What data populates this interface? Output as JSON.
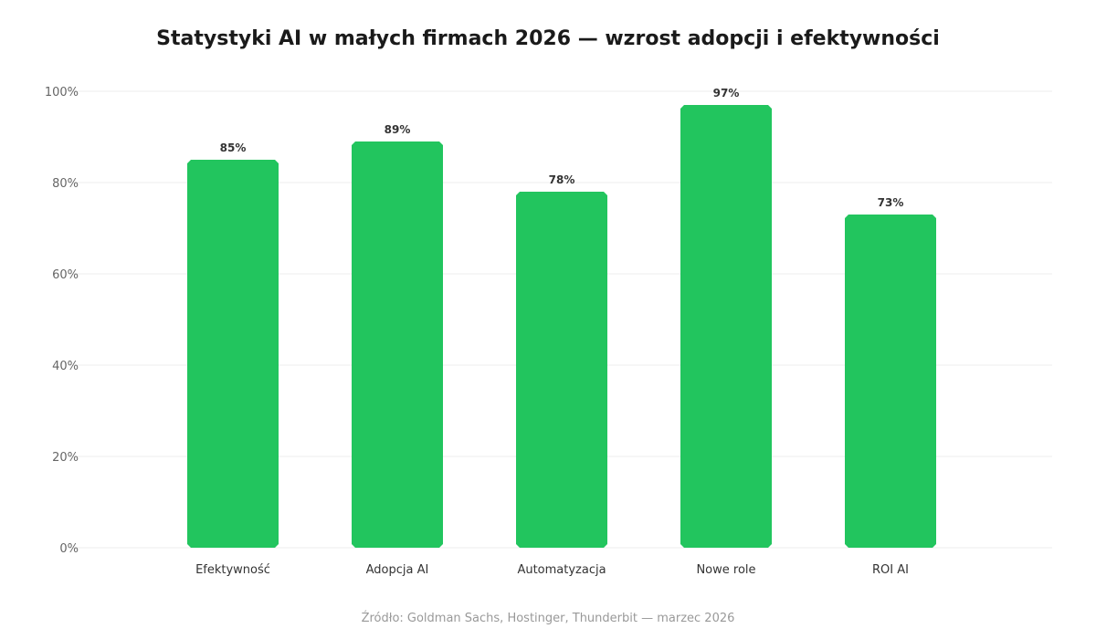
{
  "chart_data": {
    "type": "bar",
    "title": "Statystyki AI w małych firmach 2026 — wzrost adopcji i efektywności",
    "categories": [
      "Efektywność",
      "Adopcja AI",
      "Automatyzacja",
      "Nowe role",
      "ROI AI"
    ],
    "values": [
      85,
      89,
      78,
      97,
      73
    ],
    "value_labels": [
      "85%",
      "89%",
      "78%",
      "97%",
      "73%"
    ],
    "ylim": [
      0,
      100
    ],
    "yticks": [
      0,
      20,
      40,
      60,
      80,
      100
    ],
    "ytick_labels": [
      "0%",
      "20%",
      "40%",
      "60%",
      "80%",
      "100%"
    ],
    "xlabel": "",
    "ylabel": "",
    "grid": true,
    "legend": "none",
    "bar_color": "#22c55e",
    "source": "Źródło: Goldman Sachs, Hostinger, Thunderbit — marzec 2026"
  }
}
